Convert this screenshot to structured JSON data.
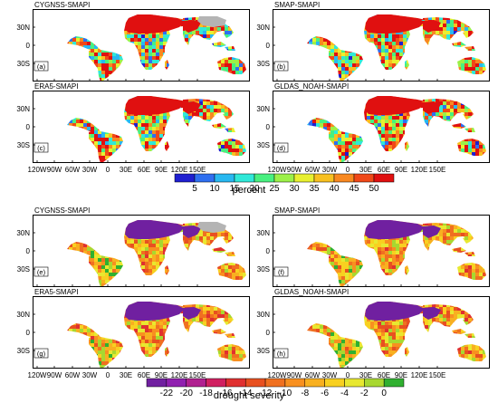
{
  "panels": [
    {
      "title": "CYGNSS-SMAPI",
      "letter": "(a)",
      "scheme": "percent"
    },
    {
      "title": "SMAP-SMAPI",
      "letter": "(b)",
      "scheme": "percent"
    },
    {
      "title": "ERA5-SMAPI",
      "letter": "(c)",
      "scheme": "percent"
    },
    {
      "title": "GLDAS_NOAH-SMAPI",
      "letter": "(d)",
      "scheme": "percent"
    },
    {
      "title": "CYGNSS-SMAPI",
      "letter": "(e)",
      "scheme": "severity"
    },
    {
      "title": "SMAP-SMAPI",
      "letter": "(f)",
      "scheme": "severity"
    },
    {
      "title": "ERA5-SMAPI",
      "letter": "(g)",
      "scheme": "severity"
    },
    {
      "title": "GLDAS_NOAH-SMAPI",
      "letter": "(h)",
      "scheme": "severity"
    }
  ],
  "lat_labels": [
    "30N",
    "0",
    "30S"
  ],
  "lon_labels": [
    "120W",
    "90W",
    "60W",
    "30W",
    "0",
    "30E",
    "60E",
    "90E",
    "120E",
    "150E"
  ],
  "colorbar_percent": {
    "title": "percent",
    "tick_labels": [
      "5",
      "10",
      "15",
      "20",
      "25",
      "30",
      "35",
      "40",
      "45",
      "50"
    ],
    "colors": [
      "#1f1fd0",
      "#2f6ff0",
      "#28b8f0",
      "#30e8d8",
      "#48f080",
      "#9cf048",
      "#e8f030",
      "#f8c020",
      "#f88820",
      "#f04818",
      "#e01010"
    ]
  },
  "colorbar_severity": {
    "title": "drought severity",
    "tick_labels": [
      "-22",
      "-20",
      "-18",
      "-16",
      "-14",
      "-12",
      "-10",
      "-8",
      "-6",
      "-4",
      "-2",
      "0"
    ],
    "colors": [
      "#7020a0",
      "#9020b0",
      "#b02090",
      "#d02060",
      "#e03030",
      "#e85020",
      "#f07020",
      "#f89020",
      "#f8b020",
      "#f8d020",
      "#e8e830",
      "#a8d830",
      "#30b030"
    ]
  },
  "land_colors": {
    "no_data": "#b4b4b4",
    "percent_palette": [
      "#1f1fd0",
      "#2f6ff0",
      "#28b8f0",
      "#30e8d8",
      "#48f080",
      "#9cf048",
      "#e8f030",
      "#f8c020",
      "#f88820",
      "#f04818",
      "#e01010"
    ],
    "severity_palette": [
      "#7020a0",
      "#9020b0",
      "#b02090",
      "#d02060",
      "#e03030",
      "#e85020",
      "#f07020",
      "#f89020",
      "#f8b020",
      "#f8d020",
      "#e8e830",
      "#a8d830",
      "#30b030"
    ]
  }
}
